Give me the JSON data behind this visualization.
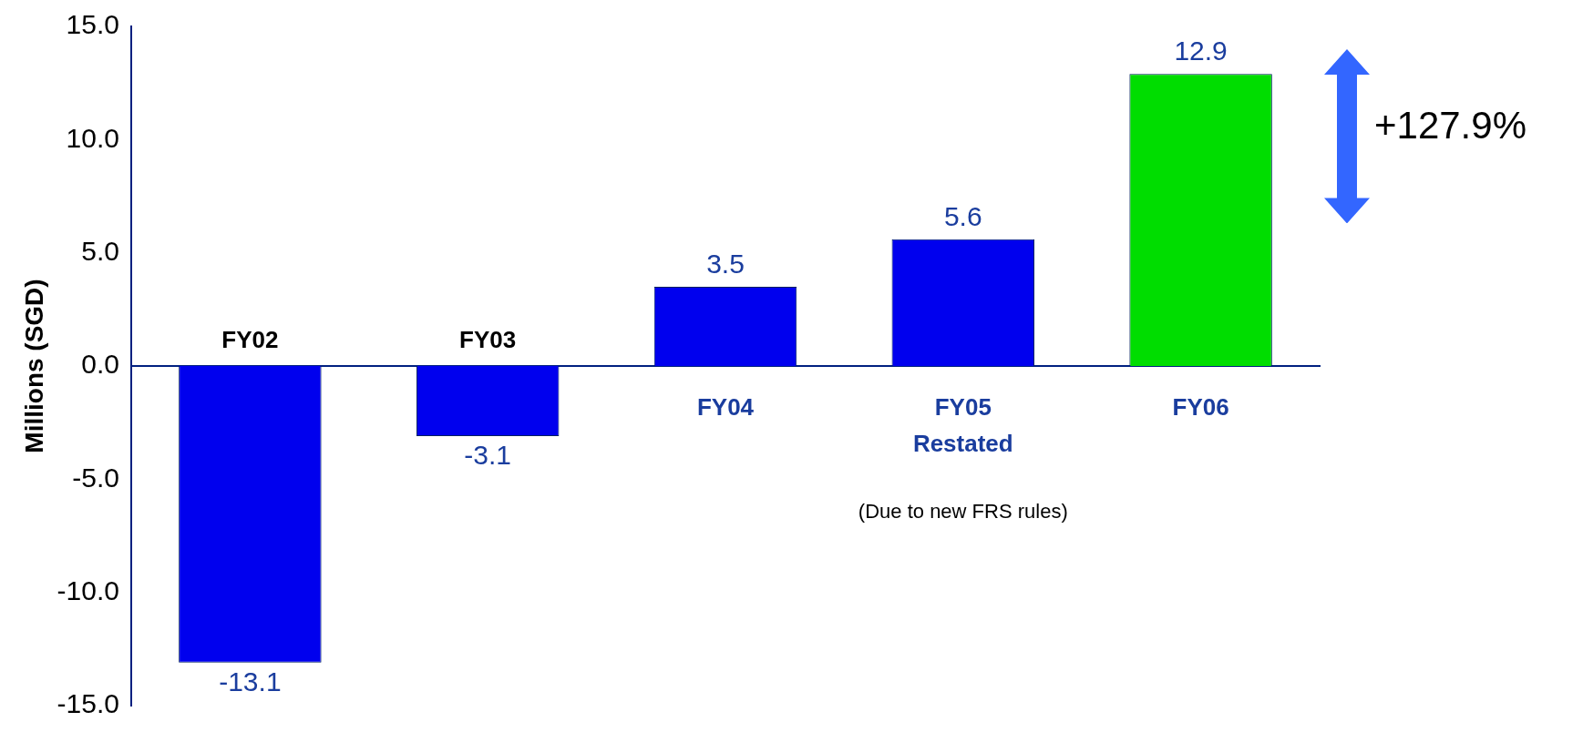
{
  "chart_data": {
    "type": "bar",
    "ylabel": "Millions (SGD)",
    "categories": [
      "FY02",
      "FY03",
      "FY04",
      "FY05 Restated",
      "FY06"
    ],
    "values": [
      -13.1,
      -3.1,
      3.5,
      5.6,
      12.9
    ],
    "colors": [
      "#0000ee",
      "#0000ee",
      "#0000ee",
      "#0000ee",
      "#00dd00"
    ],
    "ylim": [
      -15,
      15
    ],
    "yticks": [
      {
        "value": -15,
        "label": "-15.0"
      },
      {
        "value": -10,
        "label": "-10.0"
      },
      {
        "value": -5,
        "label": "-5.0"
      },
      {
        "value": 0,
        "label": "0.0"
      },
      {
        "value": 5,
        "label": "5.0"
      },
      {
        "value": 10,
        "label": "10.0"
      },
      {
        "value": 15,
        "label": "15.0"
      }
    ],
    "data_labels": true,
    "annotations": [
      "+127.9%",
      "(Due to new FRS rules)"
    ],
    "grid": false,
    "legend": false
  }
}
